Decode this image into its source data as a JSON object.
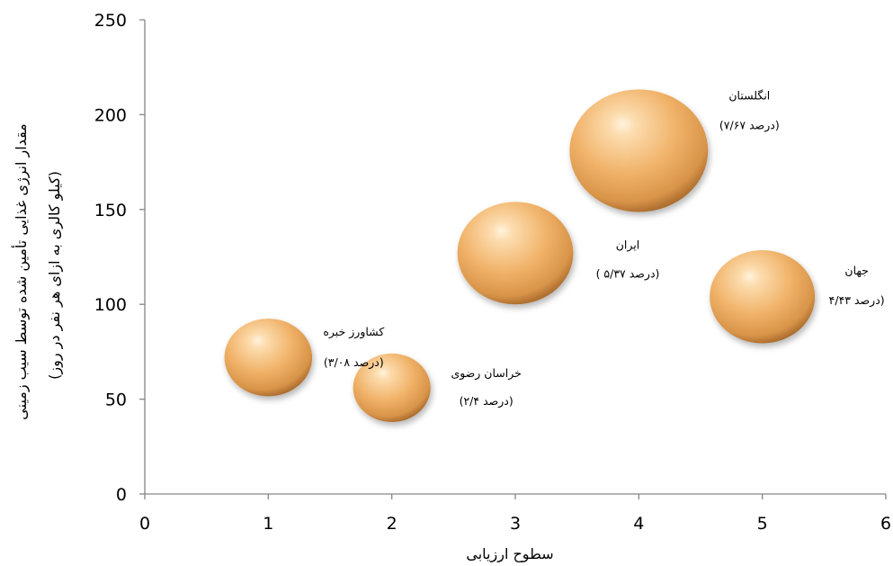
{
  "chart_data": {
    "type": "bubble",
    "xlabel": "سطوح ارزیابی",
    "ylabel": "مقدار انرژی غذایی تأمین شده توسط سیب زمینی",
    "ylabel_sub": "(کیلو کالری به ازای هر نفر در روز)",
    "xlim": [
      0,
      6
    ],
    "ylim": [
      0,
      250
    ],
    "xticks": [
      0,
      1,
      2,
      3,
      4,
      5,
      6
    ],
    "yticks": [
      0,
      50,
      100,
      150,
      200,
      250
    ],
    "grid": false,
    "legend": "none",
    "bubble_color": "#f0b268",
    "points": [
      {
        "name": "کشاورز خبره",
        "x": 1,
        "y": 72,
        "size": 3.08,
        "size_label": "(۳/۰۸ درصد)"
      },
      {
        "name": "خراسان رضوی",
        "x": 2,
        "y": 56,
        "size": 2.4,
        "size_label": "(۲/۴ درصد)"
      },
      {
        "name": "ایران",
        "x": 3,
        "y": 127,
        "size": 5.37,
        "size_label": "( ۵/۳۷ درصد)"
      },
      {
        "name": "انگلستان",
        "x": 4,
        "y": 181,
        "size": 7.67,
        "size_label": "(۷/۶۷ درصد)"
      },
      {
        "name": "جهان",
        "x": 5,
        "y": 104,
        "size": 4.43,
        "size_label": "۴/۴۳ درصد)"
      }
    ]
  }
}
